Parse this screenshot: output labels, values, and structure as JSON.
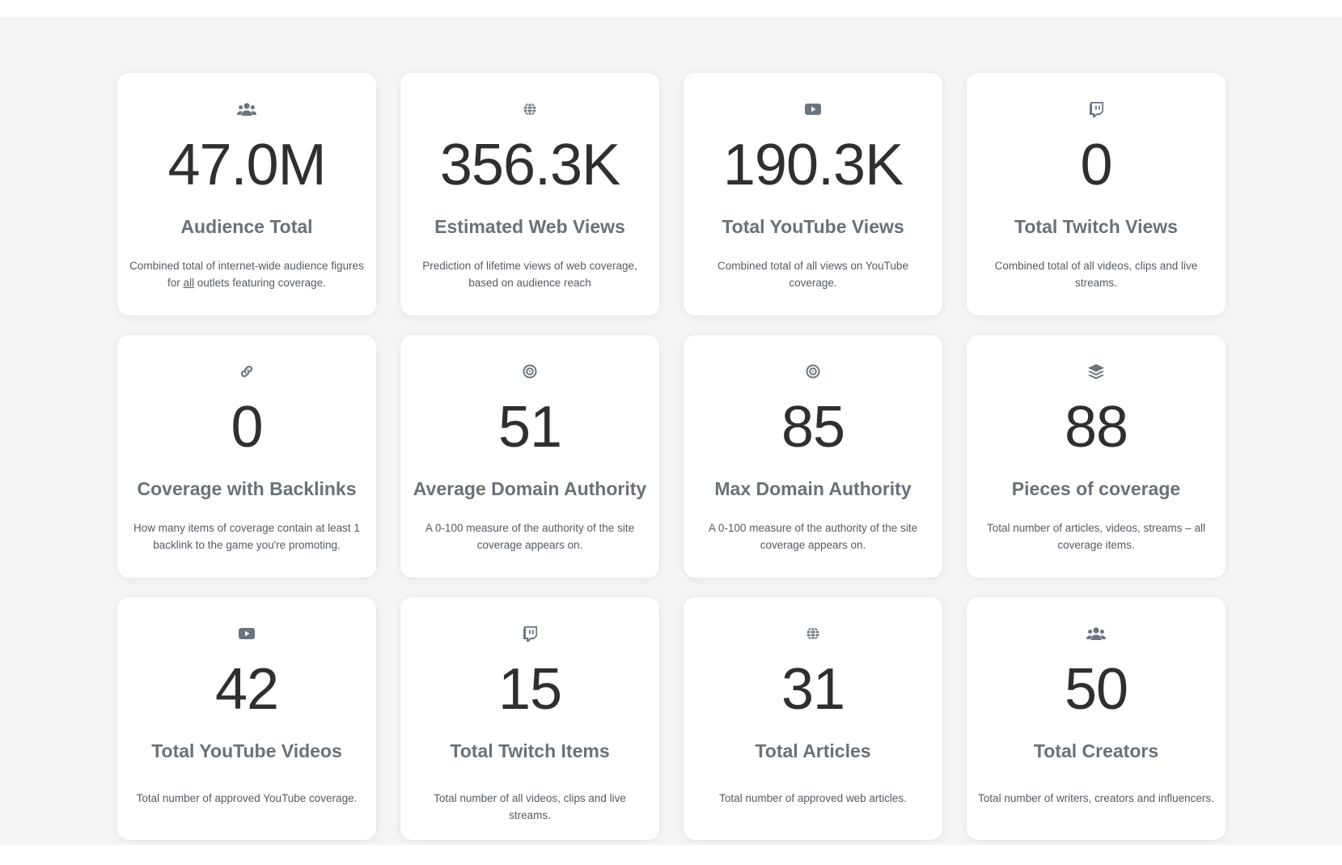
{
  "cards": [
    {
      "icon": "users-icon",
      "value": "47.0M",
      "label": "Audience Total",
      "desc_pre": "Combined total of internet-wide audience figures for ",
      "desc_em": "all",
      "desc_post": " outlets featuring coverage."
    },
    {
      "icon": "globe-icon",
      "value": "356.3K",
      "label": "Estimated Web Views",
      "desc": "Prediction of lifetime views of web coverage, based on audience reach"
    },
    {
      "icon": "youtube-icon",
      "value": "190.3K",
      "label": "Total YouTube Views",
      "desc": "Combined total of all views on YouTube coverage."
    },
    {
      "icon": "twitch-icon",
      "value": "0",
      "label": "Total Twitch Views",
      "desc": "Combined total of all videos, clips and live streams."
    },
    {
      "icon": "link-icon",
      "value": "0",
      "label": "Coverage with Backlinks",
      "desc": "How many items of coverage contain at least 1 backlink to the game you're promoting."
    },
    {
      "icon": "target-icon",
      "value": "51",
      "label": "Average Domain Authority",
      "desc": "A 0-100 measure of the authority of the site coverage appears on."
    },
    {
      "icon": "target-icon",
      "value": "85",
      "label": "Max Domain Authority",
      "desc": "A 0-100 measure of the authority of the site coverage appears on."
    },
    {
      "icon": "layers-icon",
      "value": "88",
      "label": "Pieces of coverage",
      "desc": "Total number of articles, videos, streams – all coverage items."
    },
    {
      "icon": "youtube-icon",
      "value": "42",
      "label": "Total YouTube Videos",
      "desc": "Total number of approved YouTube coverage."
    },
    {
      "icon": "twitch-icon",
      "value": "15",
      "label": "Total Twitch Items",
      "desc": "Total number of all videos, clips and live streams."
    },
    {
      "icon": "globe-icon",
      "value": "31",
      "label": "Total Articles",
      "desc": "Total number of approved web articles."
    },
    {
      "icon": "users-icon",
      "value": "50",
      "label": "Total Creators",
      "desc": "Total number of writers, creators and influencers."
    }
  ],
  "colors": {
    "icon": "#6c757d",
    "value": "#2f2f2f",
    "label": "#6a7178",
    "description": "#555b61",
    "background": "#f4f4f4",
    "card": "#ffffff"
  }
}
